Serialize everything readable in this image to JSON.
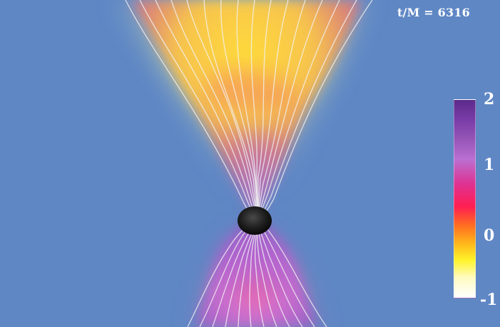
{
  "figure": {
    "time_label": "t/M = 6316"
  },
  "colorbar": {
    "ticks": [
      "2",
      "1",
      "0",
      "-1"
    ]
  },
  "colors": {
    "background": "#5f87c4",
    "field_lines": "#f2f2f2",
    "black_hole": "#1c1c1c"
  }
}
